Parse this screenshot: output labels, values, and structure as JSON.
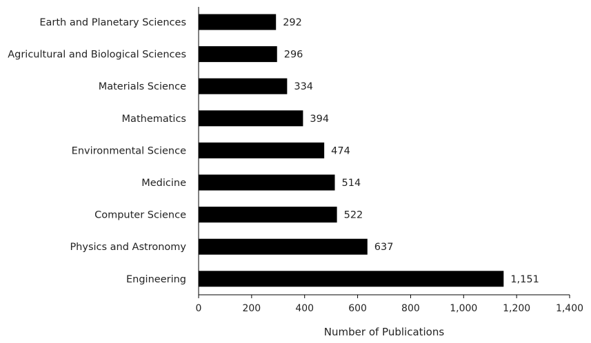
{
  "chart_data": {
    "type": "bar",
    "orientation": "horizontal",
    "categories": [
      "Earth and Planetary Sciences",
      "Agricultural and Biological Sciences",
      "Materials Science",
      "Mathematics",
      "Environmental Science",
      "Medicine",
      "Computer Science",
      "Physics and Astronomy",
      "Engineering"
    ],
    "values": [
      292,
      296,
      334,
      394,
      474,
      514,
      522,
      637,
      1151
    ],
    "value_labels": [
      "292",
      "296",
      "334",
      "394",
      "474",
      "514",
      "522",
      "637",
      "1,151"
    ],
    "xlabel": "Number of Publications",
    "ylabel": "",
    "xlim": [
      0,
      1400
    ],
    "xticks": [
      0,
      200,
      400,
      600,
      800,
      1000,
      1200,
      1400
    ],
    "xtick_labels": [
      "0",
      "200",
      "400",
      "600",
      "800",
      "1,000",
      "1,200",
      "1,400"
    ],
    "bar_color": "#000000",
    "grid": false,
    "legend": "none"
  }
}
